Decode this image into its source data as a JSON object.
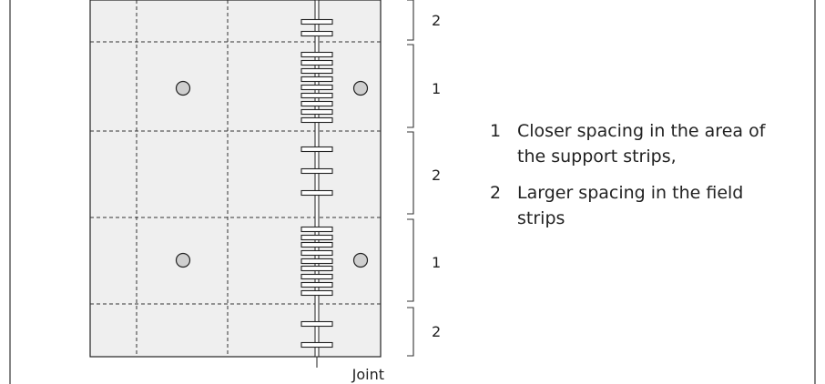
{
  "strip_labels": [
    "2",
    "1",
    "2",
    "1",
    "2"
  ],
  "joint_label": "Joint",
  "legend": [
    {
      "number": "1",
      "text": "Closer spacing in the area of the support strips,"
    },
    {
      "number": "2",
      "text": "Larger spacing in the field strips"
    }
  ],
  "colors": {
    "slab_fill": "#efefef",
    "line": "#222222",
    "column_fill": "#cfcfcf"
  }
}
